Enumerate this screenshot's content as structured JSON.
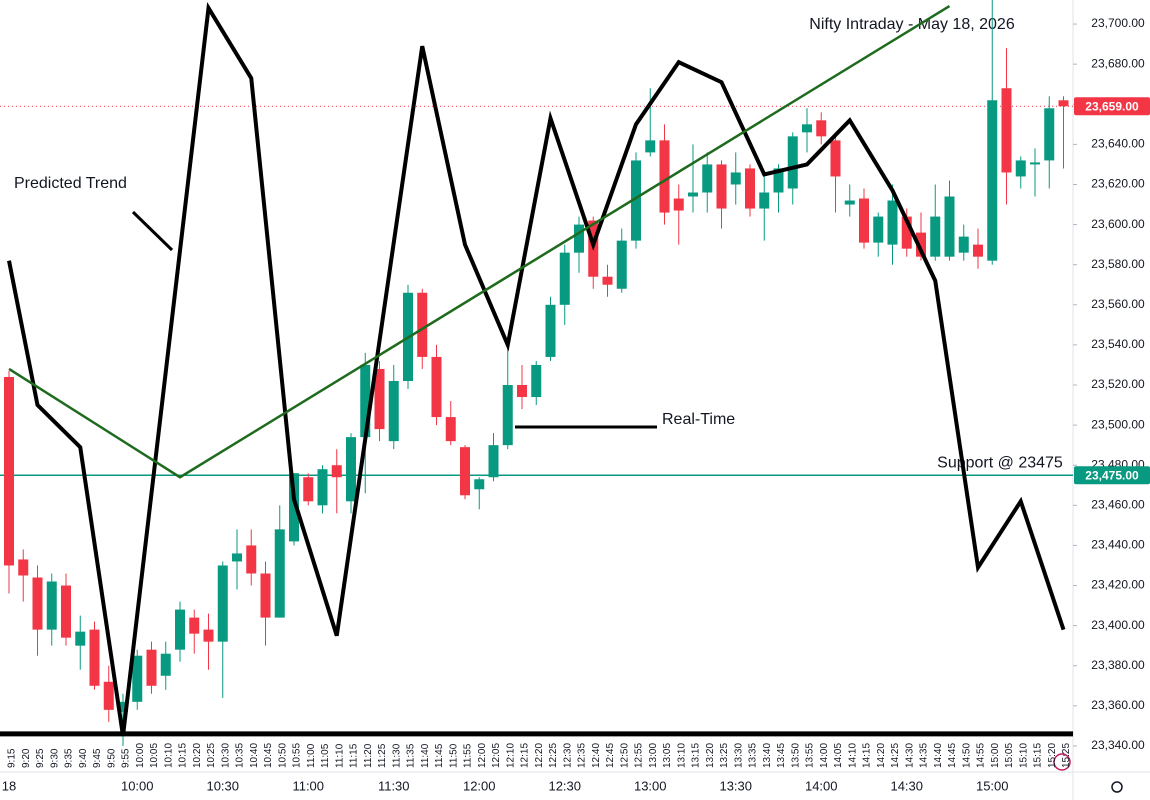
{
  "chart_data": {
    "type": "candlestick",
    "title": "Nifty Intraday - May 18, 2026",
    "categories": [
      "9:15",
      "9:20",
      "9:25",
      "9:30",
      "9:35",
      "9:40",
      "9:45",
      "9:50",
      "9:55",
      "10:00",
      "10:05",
      "10:10",
      "10:15",
      "10:20",
      "10:25",
      "10:30",
      "10:35",
      "10:40",
      "10:45",
      "10:50",
      "10:55",
      "11:00",
      "11:05",
      "11:10",
      "11:15",
      "11:20",
      "11:25",
      "11:30",
      "11:35",
      "11:40",
      "11:45",
      "11:50",
      "11:55",
      "12:00",
      "12:05",
      "12:10",
      "12:15",
      "12:20",
      "12:25",
      "12:30",
      "12:35",
      "12:40",
      "12:45",
      "12:50",
      "12:55",
      "13:00",
      "13:05",
      "13:10",
      "13:15",
      "13:20",
      "13:25",
      "13:30",
      "13:35",
      "13:40",
      "13:45",
      "13:50",
      "13:55",
      "14:00",
      "14:05",
      "14:10",
      "14:15",
      "14:20",
      "14:25",
      "14:30",
      "14:35",
      "14:40",
      "14:45",
      "14:50",
      "14:55",
      "15:00",
      "15:05",
      "15:10",
      "15:15",
      "15:20",
      "15:25"
    ],
    "x_major_labels": [
      "18",
      "10:00",
      "10:30",
      "11:00",
      "11:30",
      "12:00",
      "12:30",
      "13:00",
      "13:30",
      "14:00",
      "14:30",
      "15:00"
    ],
    "open": [
      23524,
      23433,
      23424,
      23398,
      23420,
      23390,
      23398,
      23372,
      23357,
      23362,
      23388,
      23375,
      23388,
      23404,
      23398,
      23392,
      23432,
      23440,
      23426,
      23404,
      23442,
      23474,
      23460,
      23480,
      23462,
      23494,
      23528,
      23492,
      23522,
      23566,
      23534,
      23504,
      23489,
      23468,
      23474,
      23490,
      23520,
      23514,
      23534,
      23560,
      23586,
      23602,
      23574,
      23568,
      23592,
      23636,
      23642,
      23613,
      23614,
      23616,
      23630,
      23620,
      23628,
      23608,
      23616,
      23618,
      23646,
      23652,
      23642,
      23610,
      23613,
      23591,
      23590,
      23604,
      23596,
      23584,
      23584,
      23586,
      23590,
      23582,
      23668,
      23624,
      23630,
      23632,
      23662
    ],
    "high": [
      23527,
      23438,
      23430,
      23426,
      23426,
      23405,
      23402,
      23380,
      23366,
      23388,
      23392,
      23392,
      23412,
      23408,
      23406,
      23432,
      23448,
      23448,
      23432,
      23460,
      23476,
      23476,
      23480,
      23488,
      23496,
      23536,
      23532,
      23530,
      23570,
      23568,
      23540,
      23512,
      23490,
      23474,
      23496,
      23542,
      23530,
      23532,
      23564,
      23590,
      23604,
      23604,
      23580,
      23598,
      23636,
      23668,
      23650,
      23620,
      23640,
      23636,
      23632,
      23636,
      23630,
      23624,
      23630,
      23646,
      23658,
      23656,
      23646,
      23620,
      23618,
      23606,
      23620,
      23608,
      23606,
      23620,
      23622,
      23600,
      23598,
      23712,
      23688,
      23634,
      23638,
      23664,
      23664
    ],
    "low": [
      23416,
      23412,
      23385,
      23390,
      23390,
      23378,
      23368,
      23352,
      23340,
      23358,
      23366,
      23368,
      23382,
      23386,
      23378,
      23364,
      23418,
      23420,
      23390,
      23404,
      23440,
      23460,
      23456,
      23456,
      23456,
      23466,
      23492,
      23488,
      23518,
      23528,
      23500,
      23490,
      23463,
      23458,
      23472,
      23488,
      23508,
      23510,
      23532,
      23550,
      23576,
      23568,
      23564,
      23566,
      23588,
      23634,
      23600,
      23590,
      23606,
      23606,
      23598,
      23610,
      23604,
      23592,
      23606,
      23610,
      23636,
      23640,
      23606,
      23604,
      23588,
      23584,
      23580,
      23584,
      23582,
      23582,
      23582,
      23582,
      23578,
      23580,
      23610,
      23618,
      23614,
      23618,
      23628
    ],
    "close": [
      23430,
      23425,
      23398,
      23422,
      23394,
      23397,
      23370,
      23358,
      23362,
      23385,
      23370,
      23386,
      23408,
      23396,
      23392,
      23430,
      23436,
      23426,
      23404,
      23448,
      23476,
      23462,
      23478,
      23474,
      23494,
      23530,
      23498,
      23522,
      23566,
      23534,
      23504,
      23492,
      23465,
      23473,
      23490,
      23520,
      23514,
      23530,
      23560,
      23586,
      23600,
      23574,
      23570,
      23592,
      23632,
      23642,
      23606,
      23607,
      23616,
      23630,
      23608,
      23626,
      23608,
      23616,
      23628,
      23644,
      23650,
      23644,
      23624,
      23612,
      23591,
      23604,
      23612,
      23588,
      23584,
      23604,
      23614,
      23594,
      23584,
      23662,
      23626,
      23632,
      23631,
      23658,
      23659
    ],
    "up_color": "#089981",
    "down_color": "#f23645",
    "ylim": [
      23328,
      23712
    ],
    "yticks": [
      {
        "value": 23340,
        "label": "23,340.00"
      },
      {
        "value": 23360,
        "label": "23,360.00"
      },
      {
        "value": 23380,
        "label": "23,380.00"
      },
      {
        "value": 23400,
        "label": "23,400.00"
      },
      {
        "value": 23420,
        "label": "23,420.00"
      },
      {
        "value": 23440,
        "label": "23,440.00"
      },
      {
        "value": 23460,
        "label": "23,460.00"
      },
      {
        "value": 23480,
        "label": "23,480.00"
      },
      {
        "value": 23500,
        "label": "23,500.00"
      },
      {
        "value": 23520,
        "label": "23,520.00"
      },
      {
        "value": 23540,
        "label": "23,540.00"
      },
      {
        "value": 23560,
        "label": "23,560.00"
      },
      {
        "value": 23580,
        "label": "23,580.00"
      },
      {
        "value": 23600,
        "label": "23,600.00"
      },
      {
        "value": 23620,
        "label": "23,620.00"
      },
      {
        "value": 23640,
        "label": "23,640.00"
      },
      {
        "value": 23660,
        "label": "23,660.00"
      },
      {
        "value": 23680,
        "label": "23,680.00"
      },
      {
        "value": 23700,
        "label": "23,700.00"
      }
    ],
    "lines": [
      {
        "color": "#000000",
        "x": [
          "9:15",
          "9:25",
          "9:40",
          "9:55",
          "10:15",
          "10:25",
          "10:40",
          "10:55",
          "11:10",
          "11:40",
          "11:55",
          "12:10",
          "12:25",
          "12:40",
          "12:55",
          "13:10",
          "13:25",
          "13:40",
          "13:55",
          "14:10",
          "14:25",
          "14:40",
          "14:55",
          "15:10",
          "15:25"
        ],
        "values": [
          23582,
          23510,
          23489,
          23345,
          23587,
          23708,
          23673,
          23463,
          23395,
          23689,
          23590,
          23540,
          23653,
          23590,
          23650,
          23681,
          23671,
          23625,
          23630,
          23652,
          23617,
          23572,
          23429,
          23462,
          23398
        ]
      },
      {
        "color": "#1e6b1e",
        "x": [
          "9:15",
          "10:15",
          "14:45"
        ],
        "values": [
          23528,
          23474,
          23709
        ]
      }
    ],
    "hlines": [
      {
        "value": 23475,
        "color": "#089981",
        "style": "solid",
        "label": "Support @ 23475",
        "tag": "23,475.00"
      },
      {
        "value": 23659,
        "color": "#f23645",
        "style": "dotted",
        "tag": "23,659.00"
      },
      {
        "value": 23346,
        "color": "#000000",
        "style": "thick"
      }
    ],
    "annotations": [
      "Predicted Trend",
      "Real-Time"
    ]
  }
}
